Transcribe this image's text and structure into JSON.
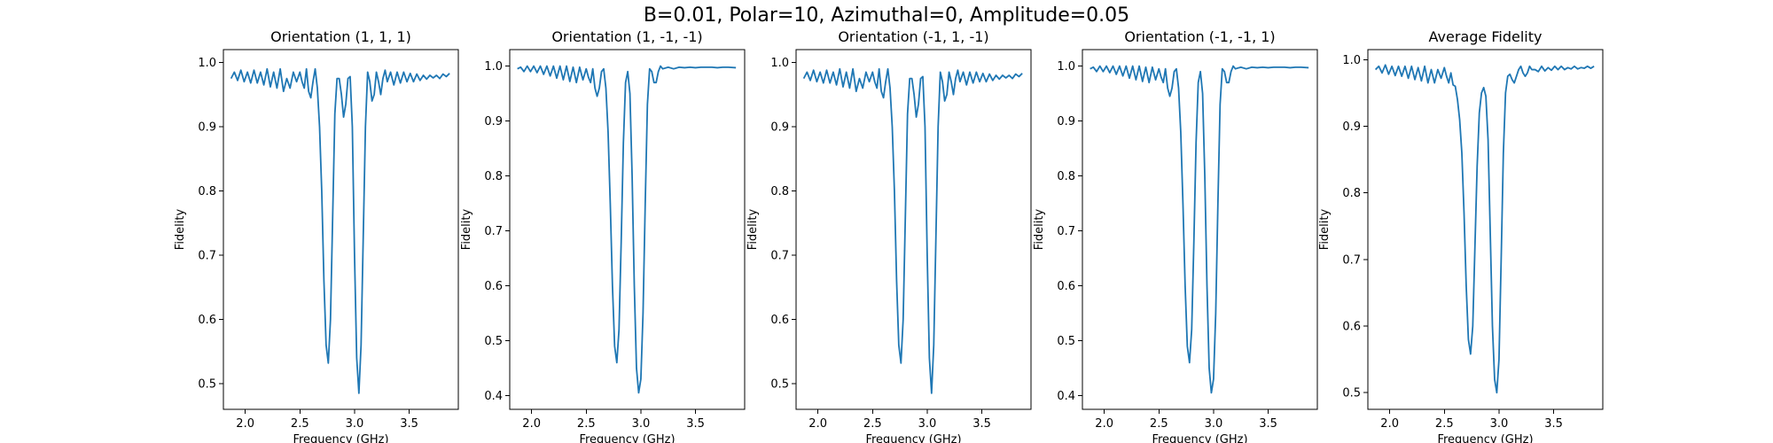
{
  "figure": {
    "suptitle": "B=0.01, Polar=10, Azimuthal=0, Amplitude=0.05",
    "line_color": "#1f77b4"
  },
  "chart_data": [
    {
      "type": "line",
      "title": "Orientation (1, 1, 1)",
      "xlabel": "Frequency (GHz)",
      "ylabel": "Fidelity",
      "xlim": [
        1.8,
        3.95
      ],
      "ylim": [
        0.46,
        1.02
      ],
      "xticks": [
        "2.0",
        "2.5",
        "3.0",
        "3.5"
      ],
      "yticks": [
        "0.5",
        "0.6",
        "0.7",
        "0.8",
        "0.9",
        "1.0"
      ],
      "grid": false,
      "x": [
        1.87,
        1.9,
        1.93,
        1.96,
        1.99,
        2.02,
        2.05,
        2.08,
        2.11,
        2.14,
        2.17,
        2.2,
        2.23,
        2.26,
        2.29,
        2.32,
        2.35,
        2.38,
        2.41,
        2.44,
        2.47,
        2.5,
        2.52,
        2.54,
        2.56,
        2.58,
        2.6,
        2.62,
        2.64,
        2.66,
        2.68,
        2.7,
        2.72,
        2.74,
        2.76,
        2.78,
        2.8,
        2.82,
        2.84,
        2.86,
        2.88,
        2.9,
        2.92,
        2.94,
        2.96,
        2.98,
        3.0,
        3.02,
        3.04,
        3.06,
        3.08,
        3.1,
        3.12,
        3.14,
        3.16,
        3.18,
        3.2,
        3.22,
        3.24,
        3.26,
        3.28,
        3.3,
        3.33,
        3.36,
        3.39,
        3.42,
        3.45,
        3.48,
        3.51,
        3.54,
        3.57,
        3.6,
        3.63,
        3.66,
        3.69,
        3.72,
        3.75,
        3.78,
        3.81,
        3.84,
        3.87
      ],
      "y": [
        0.975,
        0.985,
        0.972,
        0.988,
        0.97,
        0.985,
        0.968,
        0.988,
        0.968,
        0.985,
        0.965,
        0.99,
        0.962,
        0.985,
        0.96,
        0.99,
        0.955,
        0.975,
        0.96,
        0.985,
        0.97,
        0.985,
        0.97,
        0.96,
        0.99,
        0.955,
        0.945,
        0.97,
        0.99,
        0.96,
        0.9,
        0.8,
        0.66,
        0.56,
        0.532,
        0.6,
        0.76,
        0.92,
        0.975,
        0.975,
        0.95,
        0.915,
        0.935,
        0.975,
        0.978,
        0.9,
        0.7,
        0.54,
        0.485,
        0.56,
        0.73,
        0.9,
        0.985,
        0.97,
        0.94,
        0.95,
        0.985,
        0.97,
        0.95,
        0.975,
        0.988,
        0.97,
        0.985,
        0.965,
        0.985,
        0.968,
        0.985,
        0.97,
        0.983,
        0.97,
        0.982,
        0.972,
        0.98,
        0.974,
        0.98,
        0.976,
        0.98,
        0.975,
        0.982,
        0.978,
        0.983
      ]
    },
    {
      "type": "line",
      "title": "Orientation (1, -1, -1)",
      "xlabel": "Frequency (GHz)",
      "ylabel": "Fidelity",
      "xlim": [
        1.8,
        3.95
      ],
      "ylim": [
        0.375,
        1.03
      ],
      "xticks": [
        "2.0",
        "2.5",
        "3.0",
        "3.5"
      ],
      "yticks": [
        "0.4",
        "0.5",
        "0.6",
        "0.7",
        "0.8",
        "0.9",
        "1.0"
      ],
      "grid": false,
      "x": [
        1.87,
        1.9,
        1.93,
        1.96,
        1.99,
        2.02,
        2.05,
        2.08,
        2.11,
        2.14,
        2.17,
        2.2,
        2.23,
        2.26,
        2.29,
        2.32,
        2.35,
        2.38,
        2.41,
        2.44,
        2.47,
        2.5,
        2.52,
        2.54,
        2.56,
        2.58,
        2.6,
        2.62,
        2.64,
        2.66,
        2.68,
        2.7,
        2.72,
        2.74,
        2.76,
        2.78,
        2.8,
        2.82,
        2.84,
        2.86,
        2.88,
        2.9,
        2.92,
        2.94,
        2.96,
        2.98,
        3.0,
        3.02,
        3.04,
        3.06,
        3.08,
        3.1,
        3.12,
        3.14,
        3.16,
        3.18,
        3.2,
        3.25,
        3.3,
        3.35,
        3.4,
        3.45,
        3.5,
        3.55,
        3.6,
        3.65,
        3.7,
        3.75,
        3.8,
        3.87
      ],
      "y": [
        0.995,
        0.998,
        0.99,
        1.0,
        0.99,
        1.0,
        0.988,
        1.0,
        0.985,
        1.0,
        0.982,
        1.0,
        0.978,
        1.0,
        0.975,
        1.0,
        0.972,
        0.998,
        0.97,
        0.998,
        0.975,
        0.995,
        0.98,
        0.97,
        0.995,
        0.96,
        0.945,
        0.96,
        0.99,
        0.995,
        0.96,
        0.88,
        0.75,
        0.6,
        0.49,
        0.46,
        0.52,
        0.68,
        0.86,
        0.97,
        0.99,
        0.95,
        0.8,
        0.6,
        0.45,
        0.405,
        0.43,
        0.55,
        0.75,
        0.93,
        0.995,
        0.99,
        0.97,
        0.97,
        0.99,
        1.0,
        0.995,
        0.998,
        0.995,
        0.998,
        0.997,
        0.998,
        0.997,
        0.998,
        0.998,
        0.998,
        0.997,
        0.998,
        0.998,
        0.997
      ]
    },
    {
      "type": "line",
      "title": "Orientation (-1, 1, -1)",
      "xlabel": "Frequency (GHz)",
      "ylabel": "Fidelity",
      "xlim": [
        1.8,
        3.95
      ],
      "ylim": [
        0.46,
        1.02
      ],
      "xticks": [
        "2.0",
        "2.5",
        "3.0",
        "3.5"
      ],
      "yticks": [
        "0.5",
        "0.6",
        "0.7",
        "0.8",
        "0.9",
        "1.0"
      ],
      "grid": false,
      "x": [
        1.87,
        1.9,
        1.93,
        1.96,
        1.99,
        2.02,
        2.05,
        2.08,
        2.11,
        2.14,
        2.17,
        2.2,
        2.23,
        2.26,
        2.29,
        2.32,
        2.35,
        2.38,
        2.41,
        2.44,
        2.47,
        2.5,
        2.52,
        2.54,
        2.56,
        2.58,
        2.6,
        2.62,
        2.64,
        2.66,
        2.68,
        2.7,
        2.72,
        2.74,
        2.76,
        2.78,
        2.8,
        2.82,
        2.84,
        2.86,
        2.88,
        2.9,
        2.92,
        2.94,
        2.96,
        2.98,
        3.0,
        3.02,
        3.04,
        3.06,
        3.08,
        3.1,
        3.12,
        3.14,
        3.16,
        3.18,
        3.2,
        3.22,
        3.24,
        3.26,
        3.28,
        3.3,
        3.33,
        3.36,
        3.39,
        3.42,
        3.45,
        3.48,
        3.51,
        3.54,
        3.57,
        3.6,
        3.63,
        3.66,
        3.69,
        3.72,
        3.75,
        3.78,
        3.81,
        3.84,
        3.87
      ],
      "y": [
        0.975,
        0.985,
        0.972,
        0.988,
        0.97,
        0.985,
        0.968,
        0.988,
        0.968,
        0.985,
        0.965,
        0.99,
        0.962,
        0.985,
        0.96,
        0.99,
        0.955,
        0.975,
        0.96,
        0.985,
        0.97,
        0.985,
        0.97,
        0.96,
        0.99,
        0.955,
        0.945,
        0.97,
        0.99,
        0.96,
        0.9,
        0.8,
        0.66,
        0.56,
        0.532,
        0.6,
        0.76,
        0.92,
        0.975,
        0.975,
        0.95,
        0.915,
        0.935,
        0.975,
        0.978,
        0.9,
        0.7,
        0.54,
        0.485,
        0.56,
        0.73,
        0.9,
        0.985,
        0.97,
        0.94,
        0.95,
        0.985,
        0.97,
        0.95,
        0.975,
        0.988,
        0.97,
        0.985,
        0.965,
        0.985,
        0.968,
        0.985,
        0.97,
        0.983,
        0.97,
        0.982,
        0.972,
        0.98,
        0.974,
        0.98,
        0.976,
        0.98,
        0.975,
        0.982,
        0.978,
        0.983
      ]
    },
    {
      "type": "line",
      "title": "Orientation (-1, -1, 1)",
      "xlabel": "Frequency (GHz)",
      "ylabel": "Fidelity",
      "xlim": [
        1.8,
        3.95
      ],
      "ylim": [
        0.375,
        1.03
      ],
      "xticks": [
        "2.0",
        "2.5",
        "3.0",
        "3.5"
      ],
      "yticks": [
        "0.4",
        "0.5",
        "0.6",
        "0.7",
        "0.8",
        "0.9",
        "1.0"
      ],
      "grid": false,
      "x": [
        1.87,
        1.9,
        1.93,
        1.96,
        1.99,
        2.02,
        2.05,
        2.08,
        2.11,
        2.14,
        2.17,
        2.2,
        2.23,
        2.26,
        2.29,
        2.32,
        2.35,
        2.38,
        2.41,
        2.44,
        2.47,
        2.5,
        2.52,
        2.54,
        2.56,
        2.58,
        2.6,
        2.62,
        2.64,
        2.66,
        2.68,
        2.7,
        2.72,
        2.74,
        2.76,
        2.78,
        2.8,
        2.82,
        2.84,
        2.86,
        2.88,
        2.9,
        2.92,
        2.94,
        2.96,
        2.98,
        3.0,
        3.02,
        3.04,
        3.06,
        3.08,
        3.1,
        3.12,
        3.14,
        3.16,
        3.18,
        3.2,
        3.25,
        3.3,
        3.35,
        3.4,
        3.45,
        3.5,
        3.55,
        3.6,
        3.65,
        3.7,
        3.75,
        3.8,
        3.87
      ],
      "y": [
        0.995,
        0.998,
        0.99,
        1.0,
        0.99,
        1.0,
        0.988,
        1.0,
        0.985,
        1.0,
        0.982,
        1.0,
        0.978,
        1.0,
        0.975,
        1.0,
        0.972,
        0.998,
        0.97,
        0.998,
        0.975,
        0.995,
        0.98,
        0.97,
        0.995,
        0.96,
        0.945,
        0.96,
        0.99,
        0.995,
        0.96,
        0.88,
        0.75,
        0.6,
        0.49,
        0.46,
        0.52,
        0.68,
        0.86,
        0.97,
        0.99,
        0.95,
        0.8,
        0.6,
        0.45,
        0.405,
        0.43,
        0.55,
        0.75,
        0.93,
        0.995,
        0.99,
        0.97,
        0.97,
        0.99,
        1.0,
        0.995,
        0.998,
        0.995,
        0.998,
        0.997,
        0.998,
        0.997,
        0.998,
        0.998,
        0.998,
        0.997,
        0.998,
        0.998,
        0.997
      ]
    },
    {
      "type": "line",
      "title": "Average Fidelity",
      "xlabel": "Frequency (GHz)",
      "ylabel": "Fidelity",
      "xlim": [
        1.8,
        3.95
      ],
      "ylim": [
        0.475,
        1.015
      ],
      "xticks": [
        "2.0",
        "2.5",
        "3.0",
        "3.5"
      ],
      "yticks": [
        "0.5",
        "0.6",
        "0.7",
        "0.8",
        "0.9",
        "1.0"
      ],
      "grid": false,
      "x": [
        1.87,
        1.9,
        1.93,
        1.96,
        1.99,
        2.02,
        2.05,
        2.08,
        2.11,
        2.14,
        2.17,
        2.2,
        2.23,
        2.26,
        2.29,
        2.32,
        2.35,
        2.38,
        2.41,
        2.44,
        2.47,
        2.5,
        2.52,
        2.54,
        2.56,
        2.58,
        2.6,
        2.62,
        2.64,
        2.66,
        2.68,
        2.7,
        2.72,
        2.74,
        2.76,
        2.78,
        2.8,
        2.82,
        2.84,
        2.86,
        2.88,
        2.9,
        2.92,
        2.94,
        2.96,
        2.98,
        3.0,
        3.02,
        3.04,
        3.06,
        3.08,
        3.1,
        3.12,
        3.14,
        3.16,
        3.18,
        3.2,
        3.22,
        3.24,
        3.26,
        3.28,
        3.3,
        3.33,
        3.36,
        3.39,
        3.42,
        3.45,
        3.48,
        3.51,
        3.54,
        3.57,
        3.6,
        3.63,
        3.66,
        3.69,
        3.72,
        3.75,
        3.78,
        3.81,
        3.84,
        3.87
      ],
      "y": [
        0.985,
        0.99,
        0.98,
        0.992,
        0.978,
        0.99,
        0.976,
        0.99,
        0.975,
        0.99,
        0.972,
        0.99,
        0.97,
        0.988,
        0.968,
        0.99,
        0.965,
        0.985,
        0.965,
        0.985,
        0.972,
        0.988,
        0.975,
        0.965,
        0.98,
        0.962,
        0.96,
        0.94,
        0.91,
        0.86,
        0.77,
        0.66,
        0.58,
        0.558,
        0.6,
        0.72,
        0.84,
        0.92,
        0.95,
        0.958,
        0.945,
        0.88,
        0.74,
        0.6,
        0.52,
        0.5,
        0.55,
        0.7,
        0.86,
        0.95,
        0.975,
        0.978,
        0.97,
        0.965,
        0.975,
        0.985,
        0.99,
        0.98,
        0.975,
        0.98,
        0.99,
        0.985,
        0.985,
        0.982,
        0.99,
        0.983,
        0.988,
        0.984,
        0.99,
        0.985,
        0.99,
        0.985,
        0.988,
        0.986,
        0.99,
        0.986,
        0.988,
        0.987,
        0.99,
        0.987,
        0.99
      ]
    }
  ]
}
